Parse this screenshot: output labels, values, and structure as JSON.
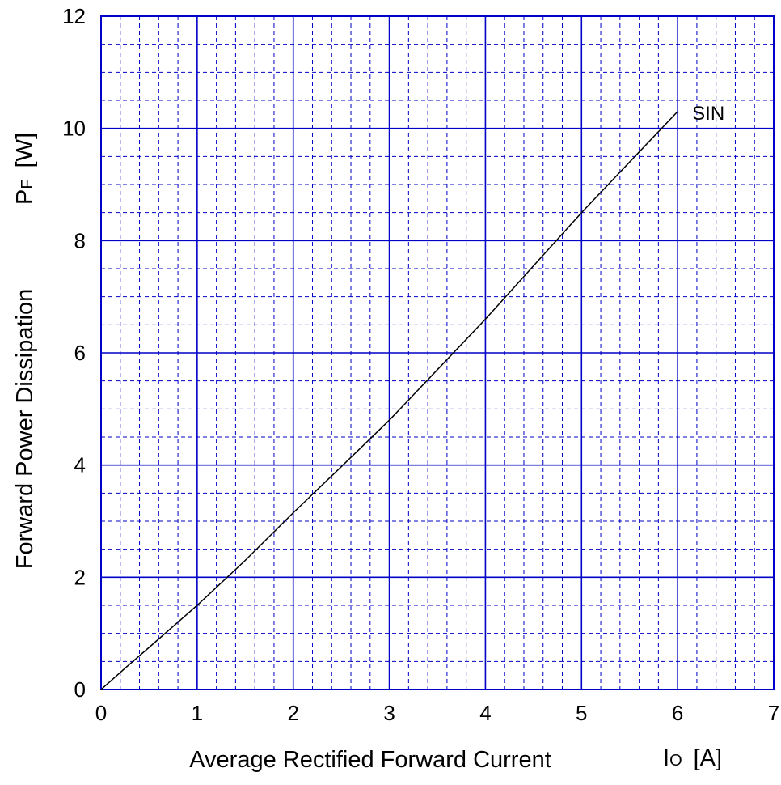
{
  "chart_data": {
    "type": "line",
    "xlabel": "Average Rectified Forward Current",
    "xunit_symbol": "I",
    "xunit_sub": "O",
    "xunit": "[A]",
    "ylabel": "Forward Power Dissipation",
    "yunit_symbol": "P",
    "yunit_sub": "F",
    "yunit": "[W]",
    "xlim": [
      0,
      7
    ],
    "ylim": [
      0,
      12
    ],
    "x_ticks": [
      "0",
      "1",
      "2",
      "3",
      "4",
      "5",
      "6",
      "7"
    ],
    "y_ticks": [
      "0",
      "2",
      "4",
      "6",
      "8",
      "10",
      "12"
    ],
    "grid": true,
    "series": [
      {
        "name": "SIN",
        "x": [
          0,
          0.25,
          0.5,
          1.0,
          1.5,
          2.0,
          2.5,
          3.0,
          3.5,
          4.0,
          4.5,
          5.0,
          5.5,
          6.0
        ],
        "y": [
          0,
          0.38,
          0.75,
          1.5,
          2.3,
          3.15,
          3.97,
          4.8,
          5.7,
          6.6,
          7.55,
          8.5,
          9.4,
          10.3
        ]
      }
    ],
    "colors": {
      "grid": "#0000c8",
      "frame": "#0000c8",
      "line": "#000000"
    }
  }
}
